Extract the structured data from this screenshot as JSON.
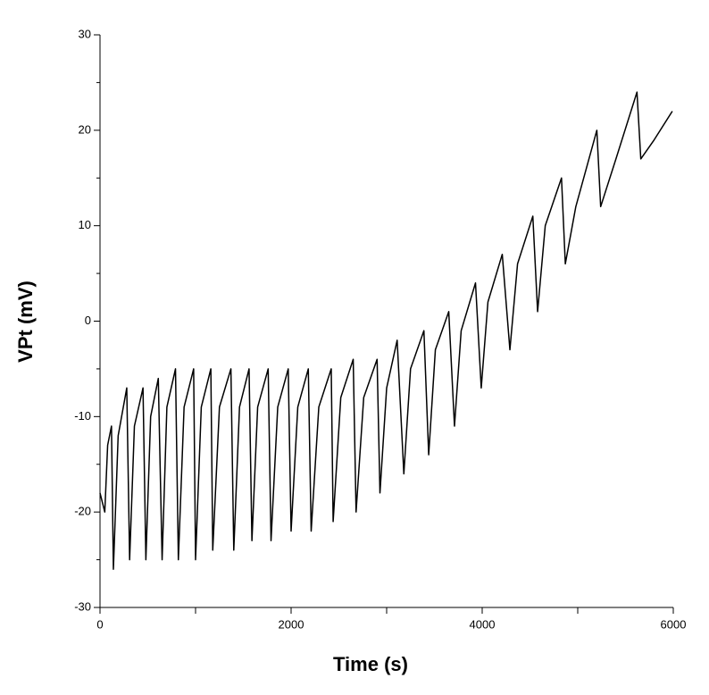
{
  "chart_data": {
    "type": "line",
    "x_label": "Time (s)",
    "y_label": "VPt (mV)",
    "x": [
      0,
      50,
      80,
      120,
      140,
      190,
      280,
      310,
      360,
      450,
      480,
      530,
      610,
      650,
      700,
      790,
      820,
      880,
      980,
      1000,
      1060,
      1160,
      1180,
      1250,
      1370,
      1400,
      1460,
      1560,
      1590,
      1650,
      1760,
      1790,
      1860,
      1970,
      2000,
      2070,
      2180,
      2210,
      2290,
      2420,
      2440,
      2520,
      2650,
      2680,
      2760,
      2900,
      2930,
      3000,
      3110,
      3180,
      3250,
      3390,
      3440,
      3510,
      3650,
      3710,
      3780,
      3930,
      3990,
      4060,
      4210,
      4290,
      4370,
      4530,
      4580,
      4660,
      4830,
      4870,
      4980,
      5200,
      5240,
      5400,
      5620,
      5660,
      5800,
      5990
    ],
    "values": [
      -18,
      -20,
      -13,
      -11,
      -26,
      -12,
      -7,
      -25,
      -11,
      -7,
      -25,
      -10,
      -6,
      -25,
      -9,
      -5,
      -25,
      -9,
      -5,
      -25,
      -9,
      -5,
      -24,
      -9,
      -5,
      -24,
      -9,
      -5,
      -23,
      -9,
      -5,
      -23,
      -9,
      -5,
      -22,
      -9,
      -5,
      -22,
      -9,
      -5,
      -21,
      -8,
      -4,
      -20,
      -8,
      -4,
      -18,
      -7,
      -2,
      -16,
      -5,
      -1,
      -14,
      -3,
      1,
      -11,
      -1,
      4,
      -7,
      2,
      7,
      -3,
      6,
      11,
      1,
      10,
      15,
      6,
      12,
      20,
      12,
      17,
      24,
      17,
      19,
      22
    ],
    "color": "#000000",
    "xlim": [
      0,
      6000
    ],
    "xticks": [
      0,
      2000,
      4000,
      6000
    ],
    "xminor": [
      1000,
      3000,
      5000
    ],
    "ylim": [
      -30,
      30
    ],
    "yticks": [
      -30,
      -20,
      -10,
      0,
      10,
      20,
      30
    ],
    "yminor": [
      -25,
      -15,
      -5,
      5,
      15,
      25
    ]
  }
}
